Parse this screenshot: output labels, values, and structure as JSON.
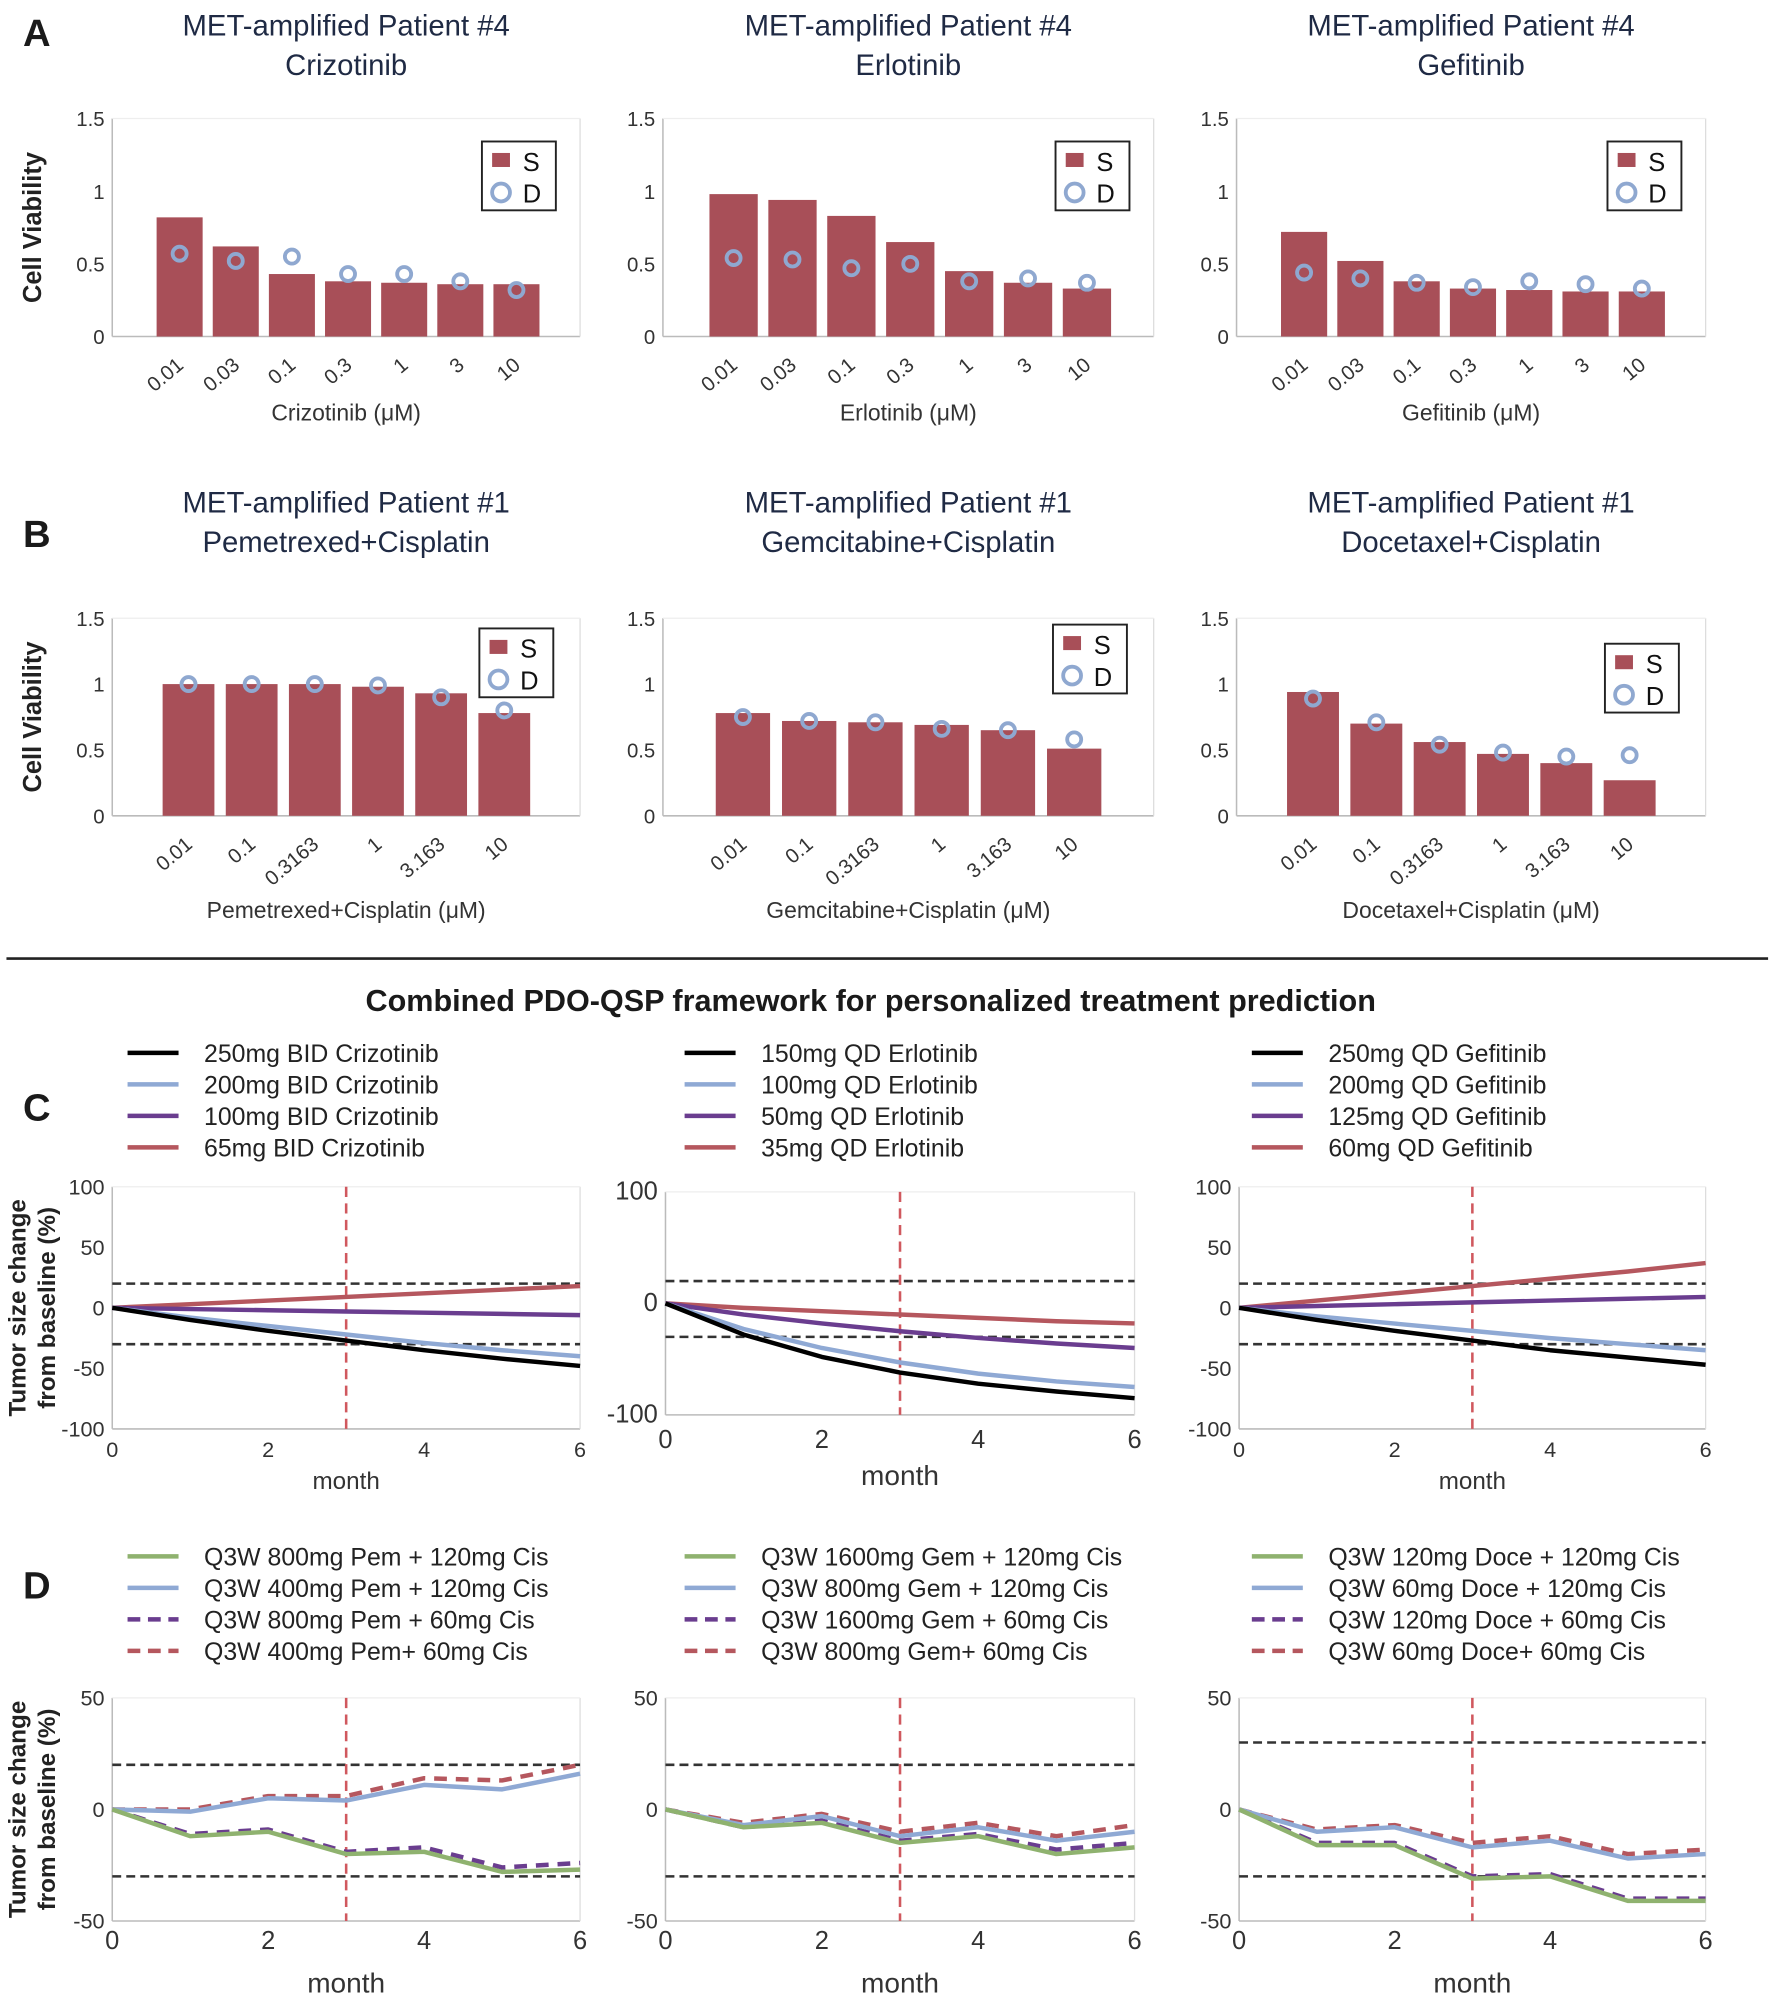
{
  "panel_labels": [
    "A",
    "B",
    "C",
    "D"
  ],
  "section_heading": "Combined PDO-QSP framework for personalized treatment prediction",
  "colors": {
    "bar_S": "#a84f58",
    "marker_D": "#8fa8d0",
    "black": "#000000",
    "blue": "#8fa9d4",
    "purple": "#6a3d8f",
    "red": "#b5575e",
    "green": "#8fb26f",
    "threshold": "#333333",
    "month3_line": "#d0585e"
  },
  "chart_data": [
    {
      "type": "bar",
      "title": [
        "MET-amplified Patient #4",
        "Crizotinib"
      ],
      "xlabel": "Crizotinib (μM)",
      "ylabel": "Cell Viability",
      "ylim": [
        0,
        1.5
      ],
      "yticks": [
        "0",
        "0.5",
        "1",
        "1.5"
      ],
      "legend": "top-right",
      "categories": [
        "0.01",
        "0.03",
        "0.1",
        "0.3",
        "1",
        "3",
        "10"
      ],
      "series": [
        {
          "name": "S",
          "values": [
            0.82,
            0.62,
            0.43,
            0.38,
            0.37,
            0.36,
            0.36
          ]
        },
        {
          "name": "D",
          "marker": "circle",
          "values": [
            0.57,
            0.52,
            0.55,
            0.43,
            0.43,
            0.38,
            0.32
          ]
        }
      ]
    },
    {
      "type": "bar",
      "title": [
        "MET-amplified Patient #4",
        "Erlotinib"
      ],
      "xlabel": "Erlotinib (μM)",
      "ylabel": "",
      "ylim": [
        0,
        1.5
      ],
      "yticks": [
        "0",
        "0.5",
        "1",
        "1.5"
      ],
      "legend": "top-right",
      "categories": [
        "0.01",
        "0.03",
        "0.1",
        "0.3",
        "1",
        "3",
        "10"
      ],
      "series": [
        {
          "name": "S",
          "values": [
            0.98,
            0.94,
            0.83,
            0.65,
            0.45,
            0.37,
            0.33
          ]
        },
        {
          "name": "D",
          "marker": "circle",
          "values": [
            0.54,
            0.53,
            0.47,
            0.5,
            0.38,
            0.4,
            0.37
          ]
        }
      ]
    },
    {
      "type": "bar",
      "title": [
        "MET-amplified Patient #4",
        "Gefitinib"
      ],
      "xlabel": "Gefitinib (μM)",
      "ylabel": "",
      "ylim": [
        0,
        1.5
      ],
      "yticks": [
        "0",
        "0.5",
        "1",
        "1.5"
      ],
      "legend": "top-right",
      "categories": [
        "0.01",
        "0.03",
        "0.1",
        "0.3",
        "1",
        "3",
        "10"
      ],
      "series": [
        {
          "name": "S",
          "values": [
            0.72,
            0.52,
            0.38,
            0.33,
            0.32,
            0.31,
            0.31
          ]
        },
        {
          "name": "D",
          "marker": "circle",
          "values": [
            0.44,
            0.4,
            0.37,
            0.34,
            0.38,
            0.36,
            0.33
          ]
        }
      ]
    },
    {
      "type": "bar",
      "title": [
        "MET-amplified Patient #1",
        "Pemetrexed+Cisplatin"
      ],
      "xlabel": "Pemetrexed+Cisplatin (μM)",
      "ylabel": "Cell Viability",
      "ylim": [
        0,
        1.5
      ],
      "yticks": [
        "0",
        "0.5",
        "1",
        "1.5"
      ],
      "legend": "top-right",
      "categories": [
        "0.01",
        "0.1",
        "0.3163",
        "1",
        "3.163",
        "10"
      ],
      "series": [
        {
          "name": "S",
          "values": [
            1.0,
            1.0,
            1.0,
            0.98,
            0.93,
            0.78
          ]
        },
        {
          "name": "D",
          "marker": "circle",
          "values": [
            1.0,
            1.0,
            1.0,
            0.99,
            0.9,
            0.8
          ]
        }
      ]
    },
    {
      "type": "bar",
      "title": [
        "MET-amplified Patient #1",
        "Gemcitabine+Cisplatin"
      ],
      "xlabel": "Gemcitabine+Cisplatin (μM)",
      "ylabel": "",
      "ylim": [
        0,
        1.5
      ],
      "yticks": [
        "0",
        "0.5",
        "1",
        "1.5"
      ],
      "legend": "top-right",
      "categories": [
        "0.01",
        "0.1",
        "0.3163",
        "1",
        "3.163",
        "10"
      ],
      "series": [
        {
          "name": "S",
          "values": [
            0.78,
            0.72,
            0.71,
            0.69,
            0.65,
            0.51
          ]
        },
        {
          "name": "D",
          "marker": "circle",
          "values": [
            0.75,
            0.72,
            0.71,
            0.66,
            0.65,
            0.58
          ]
        }
      ]
    },
    {
      "type": "bar",
      "title": [
        "MET-amplified Patient #1",
        "Docetaxel+Cisplatin"
      ],
      "xlabel": "Docetaxel+Cisplatin (μM)",
      "ylabel": "",
      "ylim": [
        0,
        1.5
      ],
      "yticks": [
        "0",
        "0.5",
        "1",
        "1.5"
      ],
      "legend": "top-right",
      "categories": [
        "0.01",
        "0.1",
        "0.3163",
        "1",
        "3.163",
        "10"
      ],
      "series": [
        {
          "name": "S",
          "values": [
            0.94,
            0.7,
            0.56,
            0.47,
            0.4,
            0.27
          ]
        },
        {
          "name": "D",
          "marker": "circle",
          "values": [
            0.89,
            0.71,
            0.54,
            0.48,
            0.45,
            0.46
          ]
        }
      ]
    },
    {
      "type": "line",
      "xlabel": "month",
      "ylabel": [
        "Tumor size change",
        "from baseline (%)"
      ],
      "xlim": [
        0,
        6
      ],
      "ylim": [
        -100,
        100
      ],
      "xticks": [
        "0",
        "2",
        "4",
        "6"
      ],
      "yticks": [
        "-100",
        "-50",
        "0",
        "50",
        "100"
      ],
      "thresholds": [
        20,
        -30
      ],
      "vline": 3,
      "legend": "top",
      "x": [
        0,
        1,
        2,
        3,
        4,
        5,
        6
      ],
      "series": [
        {
          "name": "250mg BID Crizotinib",
          "color": "black",
          "values": [
            0,
            -10,
            -19,
            -27,
            -35,
            -42,
            -48
          ]
        },
        {
          "name": "200mg BID Crizotinib",
          "color": "blue",
          "values": [
            0,
            -8,
            -15,
            -22,
            -29,
            -35,
            -40
          ]
        },
        {
          "name": "100mg BID Crizotinib",
          "color": "purple",
          "values": [
            0,
            -1,
            -2,
            -3,
            -4,
            -5,
            -6
          ]
        },
        {
          "name": "65mg BID Crizotinib",
          "color": "red",
          "values": [
            0,
            3,
            6,
            9,
            12,
            15,
            18
          ]
        }
      ]
    },
    {
      "type": "line",
      "xlabel": "month",
      "ylabel": "",
      "xlim": [
        0,
        6
      ],
      "ylim": [
        -100,
        100
      ],
      "xticks": [
        "0",
        "2",
        "4",
        "6"
      ],
      "yticks": [
        "-100",
        "0",
        "100"
      ],
      "thresholds": [
        20,
        -30
      ],
      "vline": 3,
      "legend": "top",
      "x": [
        0,
        1,
        2,
        3,
        4,
        5,
        6
      ],
      "series": [
        {
          "name": "150mg QD Erlotinib",
          "color": "black",
          "values": [
            0,
            -28,
            -48,
            -62,
            -72,
            -79,
            -85
          ]
        },
        {
          "name": "100mg QD Erlotinib",
          "color": "blue",
          "values": [
            0,
            -23,
            -40,
            -53,
            -63,
            -70,
            -75
          ]
        },
        {
          "name": "50mg QD Erlotinib",
          "color": "purple",
          "values": [
            0,
            -10,
            -18,
            -25,
            -31,
            -36,
            -40
          ]
        },
        {
          "name": "35mg QD Erlotinib",
          "color": "red",
          "values": [
            0,
            -4,
            -7,
            -10,
            -13,
            -16,
            -18
          ]
        }
      ]
    },
    {
      "type": "line",
      "xlabel": "month",
      "ylabel": "",
      "xlim": [
        0,
        6
      ],
      "ylim": [
        -100,
        100
      ],
      "xticks": [
        "0",
        "2",
        "4",
        "6"
      ],
      "yticks": [
        "-100",
        "-50",
        "0",
        "50",
        "100"
      ],
      "thresholds": [
        20,
        -30
      ],
      "vline": 3,
      "legend": "top",
      "x": [
        0,
        1,
        2,
        3,
        4,
        5,
        6
      ],
      "series": [
        {
          "name": "250mg QD Gefitinib",
          "color": "black",
          "values": [
            0,
            -10,
            -19,
            -27,
            -35,
            -41,
            -47
          ]
        },
        {
          "name": "200mg QD Gefitinib",
          "color": "blue",
          "values": [
            0,
            -7,
            -13,
            -19,
            -25,
            -30,
            -35
          ]
        },
        {
          "name": "125mg QD Gefitinib",
          "color": "purple",
          "values": [
            0,
            1.5,
            3,
            4.5,
            6,
            7.5,
            9
          ]
        },
        {
          "name": "60mg QD Gefitinib",
          "color": "red",
          "values": [
            0,
            6,
            12,
            18,
            24,
            30,
            37
          ]
        }
      ]
    },
    {
      "type": "line",
      "xlabel": "month",
      "ylabel": [
        "Tumor size change",
        "from baseline (%)"
      ],
      "xlim": [
        0,
        6
      ],
      "ylim": [
        -50,
        50
      ],
      "xticks": [
        "0",
        "2",
        "4",
        "6"
      ],
      "yticks": [
        "-50",
        "0",
        "50"
      ],
      "thresholds": [
        20,
        -30
      ],
      "vline": 3,
      "legend": "top",
      "x": [
        0,
        1,
        2,
        3,
        4,
        5,
        6
      ],
      "series": [
        {
          "name": "Q3W 800mg Pem + 120mg Cis",
          "color": "green",
          "style": "solid",
          "values": [
            0,
            -12,
            -10,
            -20,
            -19,
            -28,
            -27
          ]
        },
        {
          "name": "Q3W 400mg Pem + 120mg Cis",
          "color": "blue",
          "style": "solid",
          "values": [
            0,
            -1,
            5,
            4,
            11,
            9,
            16
          ]
        },
        {
          "name": "Q3W 800mg Pem + 60mg Cis",
          "color": "purple",
          "style": "dashed",
          "values": [
            0,
            -11,
            -9,
            -19,
            -17,
            -26,
            -24
          ]
        },
        {
          "name": "Q3W 400mg Pem+ 60mg Cis",
          "color": "red",
          "style": "dashed",
          "values": [
            0,
            0,
            6,
            6,
            14,
            13,
            20
          ]
        }
      ]
    },
    {
      "type": "line",
      "xlabel": "month",
      "ylabel": "",
      "xlim": [
        0,
        6
      ],
      "ylim": [
        -50,
        50
      ],
      "xticks": [
        "0",
        "2",
        "4",
        "6"
      ],
      "yticks": [
        "-50",
        "0",
        "50"
      ],
      "thresholds": [
        20,
        -30
      ],
      "vline": 3,
      "legend": "top",
      "x": [
        0,
        1,
        2,
        3,
        4,
        5,
        6
      ],
      "series": [
        {
          "name": "Q3W 1600mg Gem + 120mg Cis",
          "color": "green",
          "style": "solid",
          "values": [
            0,
            -8,
            -6,
            -15,
            -12,
            -20,
            -17
          ]
        },
        {
          "name": "Q3W 800mg Gem + 120mg Cis",
          "color": "blue",
          "style": "solid",
          "values": [
            0,
            -7,
            -3,
            -12,
            -8,
            -14,
            -10
          ]
        },
        {
          "name": "Q3W 1600mg Gem + 60mg Cis",
          "color": "purple",
          "style": "dashed",
          "values": [
            0,
            -8,
            -5,
            -14,
            -11,
            -18,
            -15
          ]
        },
        {
          "name": "Q3W 800mg Gem+ 60mg Cis",
          "color": "red",
          "style": "dashed",
          "values": [
            0,
            -6,
            -2,
            -10,
            -6,
            -12,
            -7
          ]
        }
      ]
    },
    {
      "type": "line",
      "xlabel": "month",
      "ylabel": "",
      "xlim": [
        0,
        6
      ],
      "ylim": [
        -50,
        50
      ],
      "xticks": [
        "0",
        "2",
        "4",
        "6"
      ],
      "yticks": [
        "-50",
        "0",
        "50"
      ],
      "thresholds": [
        30,
        -30
      ],
      "vline": 3,
      "legend": "top",
      "x": [
        0,
        1,
        2,
        3,
        4,
        5,
        6
      ],
      "series": [
        {
          "name": "Q3W 120mg Doce + 120mg Cis",
          "color": "green",
          "style": "solid",
          "values": [
            0,
            -16,
            -16,
            -31,
            -30,
            -41,
            -41
          ]
        },
        {
          "name": "Q3W 60mg Doce + 120mg Cis",
          "color": "blue",
          "style": "solid",
          "values": [
            0,
            -10,
            -8,
            -17,
            -14,
            -22,
            -20
          ]
        },
        {
          "name": "Q3W 120mg Doce + 60mg Cis",
          "color": "purple",
          "style": "dashed",
          "values": [
            0,
            -15,
            -15,
            -30,
            -29,
            -40,
            -40
          ]
        },
        {
          "name": "Q3W 60mg Doce+ 60mg Cis",
          "color": "red",
          "style": "dashed",
          "values": [
            0,
            -9,
            -7,
            -15,
            -12,
            -20,
            -18
          ]
        }
      ]
    }
  ]
}
